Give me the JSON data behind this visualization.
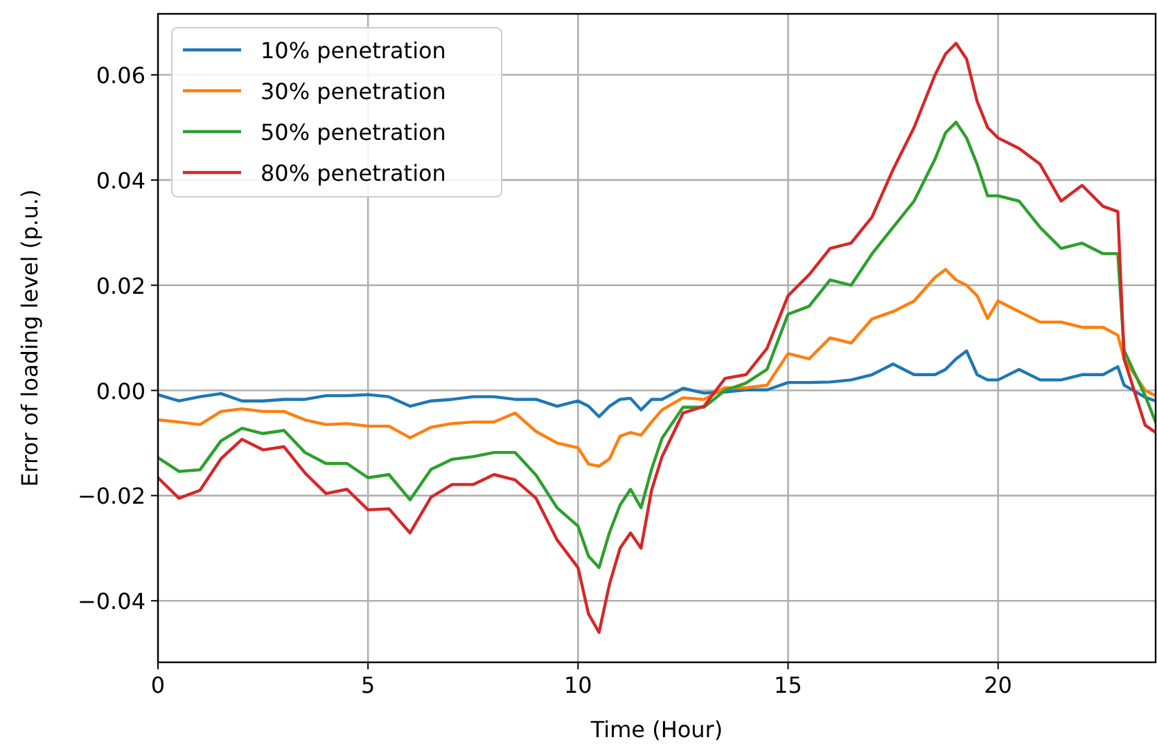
{
  "chart_data": {
    "type": "line",
    "xlabel": "Time (Hour)",
    "ylabel": "Error of loading level (p.u.)",
    "x": [
      0,
      0.5,
      1,
      1.5,
      2,
      2.5,
      3,
      3.5,
      4,
      4.5,
      5,
      5.5,
      6,
      6.5,
      7,
      7.5,
      8,
      8.5,
      9,
      9.5,
      10,
      10.25,
      10.5,
      10.75,
      11,
      11.25,
      11.5,
      11.75,
      12,
      12.5,
      13,
      13.5,
      14,
      14.5,
      15,
      15.5,
      16,
      16.5,
      17,
      17.5,
      18,
      18.5,
      18.75,
      19,
      19.25,
      19.5,
      19.75,
      20,
      20.5,
      21,
      21.5,
      22,
      22.5,
      22.85,
      23,
      23.5,
      23.75
    ],
    "series": [
      {
        "name": "10% penetration",
        "color": "#1f77b4",
        "values": [
          -0.0008,
          -0.002,
          -0.0012,
          -0.0006,
          -0.002,
          -0.002,
          -0.0017,
          -0.0017,
          -0.001,
          -0.001,
          -0.0008,
          -0.0012,
          -0.003,
          -0.002,
          -0.0017,
          -0.0012,
          -0.0012,
          -0.0017,
          -0.0017,
          -0.003,
          -0.002,
          -0.003,
          -0.005,
          -0.003,
          -0.0017,
          -0.0015,
          -0.0037,
          -0.0017,
          -0.0017,
          0.0004,
          -0.0005,
          -0.0003,
          0.0001,
          0.0001,
          0.0015,
          0.0015,
          0.0016,
          0.002,
          0.003,
          0.005,
          0.003,
          0.003,
          0.004,
          0.006,
          0.0075,
          0.003,
          0.002,
          0.002,
          0.004,
          0.002,
          0.002,
          0.003,
          0.003,
          0.0045,
          0.001,
          -0.0013,
          -0.002
        ]
      },
      {
        "name": "30% penetration",
        "color": "#ff7f0e",
        "values": [
          -0.0056,
          -0.006,
          -0.0065,
          -0.004,
          -0.0035,
          -0.004,
          -0.004,
          -0.0056,
          -0.0065,
          -0.0063,
          -0.0068,
          -0.0068,
          -0.009,
          -0.007,
          -0.0063,
          -0.006,
          -0.006,
          -0.0043,
          -0.0078,
          -0.01,
          -0.0109,
          -0.014,
          -0.0144,
          -0.013,
          -0.0087,
          -0.008,
          -0.0085,
          -0.006,
          -0.0037,
          -0.0014,
          -0.0017,
          0.0005,
          0.0005,
          0.001,
          0.007,
          0.006,
          0.01,
          0.009,
          0.0136,
          0.015,
          0.017,
          0.0215,
          0.023,
          0.021,
          0.02,
          0.018,
          0.0137,
          0.017,
          0.015,
          0.013,
          0.013,
          0.012,
          0.012,
          0.0105,
          0.006,
          0.0,
          -0.001
        ]
      },
      {
        "name": "50% penetration",
        "color": "#2ca02c",
        "values": [
          -0.0128,
          -0.0154,
          -0.0151,
          -0.0096,
          -0.0072,
          -0.0082,
          -0.0076,
          -0.0118,
          -0.0139,
          -0.0139,
          -0.0166,
          -0.016,
          -0.0208,
          -0.015,
          -0.0131,
          -0.0126,
          -0.0118,
          -0.0118,
          -0.0161,
          -0.0223,
          -0.0258,
          -0.0315,
          -0.0337,
          -0.027,
          -0.0218,
          -0.0188,
          -0.0223,
          -0.015,
          -0.0091,
          -0.0032,
          -0.0032,
          0.0,
          0.0014,
          0.004,
          0.0145,
          0.016,
          0.021,
          0.02,
          0.026,
          0.031,
          0.036,
          0.044,
          0.049,
          0.051,
          0.048,
          0.043,
          0.037,
          0.037,
          0.036,
          0.031,
          0.027,
          0.028,
          0.026,
          0.026,
          0.0076,
          -0.001,
          -0.006
        ]
      },
      {
        "name": "80% penetration",
        "color": "#d62728",
        "values": [
          -0.0166,
          -0.0205,
          -0.019,
          -0.013,
          -0.0093,
          -0.0113,
          -0.0107,
          -0.0157,
          -0.0196,
          -0.0188,
          -0.0227,
          -0.0225,
          -0.0271,
          -0.0203,
          -0.0179,
          -0.0179,
          -0.016,
          -0.017,
          -0.0205,
          -0.0284,
          -0.0337,
          -0.0425,
          -0.046,
          -0.0368,
          -0.03,
          -0.0271,
          -0.03,
          -0.019,
          -0.0126,
          -0.0043,
          -0.003,
          0.0023,
          0.003,
          0.008,
          0.018,
          0.022,
          0.027,
          0.028,
          0.033,
          0.042,
          0.05,
          0.06,
          0.064,
          0.066,
          0.063,
          0.055,
          0.05,
          0.048,
          0.046,
          0.043,
          0.036,
          0.039,
          0.035,
          0.034,
          0.006,
          -0.0066,
          -0.008
        ]
      }
    ],
    "xlim": [
      0,
      23.75
    ],
    "ylim": [
      -0.0517,
      0.0716
    ],
    "xticks": [
      0,
      5,
      10,
      15,
      20
    ],
    "yticks": [
      {
        "value": -0.04,
        "label": "−0.04"
      },
      {
        "value": -0.02,
        "label": "−0.02"
      },
      {
        "value": 0,
        "label": "0.00"
      },
      {
        "value": 0.02,
        "label": "0.02"
      },
      {
        "value": 0.04,
        "label": "0.04"
      },
      {
        "value": 0.06,
        "label": "0.06"
      }
    ],
    "grid": true,
    "legend": "top left",
    "line_style": "solid",
    "marker": "none"
  }
}
